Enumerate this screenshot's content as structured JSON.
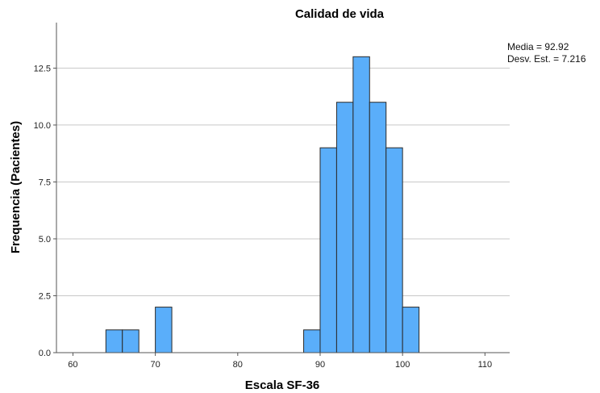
{
  "chart_data": {
    "type": "bar",
    "title": "Calidad de vida",
    "xlabel": "Escala SF-36",
    "ylabel": "Frequencia (Pacientes)",
    "xlim": [
      58,
      113
    ],
    "ylim": [
      0,
      14.5
    ],
    "xticks": [
      60,
      70,
      80,
      90,
      100,
      110
    ],
    "yticks": [
      0,
      2.5,
      5,
      7.5,
      10,
      12.5
    ],
    "ytick_labels": [
      "0.0",
      "2.5",
      "5.0",
      "7.5",
      "10.0",
      "12.5"
    ],
    "bin_width": 2,
    "bins": [
      {
        "start": 64,
        "count": 1
      },
      {
        "start": 66,
        "count": 1
      },
      {
        "start": 70,
        "count": 2
      },
      {
        "start": 88,
        "count": 1
      },
      {
        "start": 90,
        "count": 9
      },
      {
        "start": 92,
        "count": 11
      },
      {
        "start": 94,
        "count": 13
      },
      {
        "start": 96,
        "count": 11
      },
      {
        "start": 98,
        "count": 9
      },
      {
        "start": 100,
        "count": 2
      }
    ],
    "bar_color": "#5aaefa",
    "grid": true,
    "stats": {
      "mean_label": "Media = 92.92",
      "sd_label": "Desv. Est. = 7.216"
    }
  }
}
